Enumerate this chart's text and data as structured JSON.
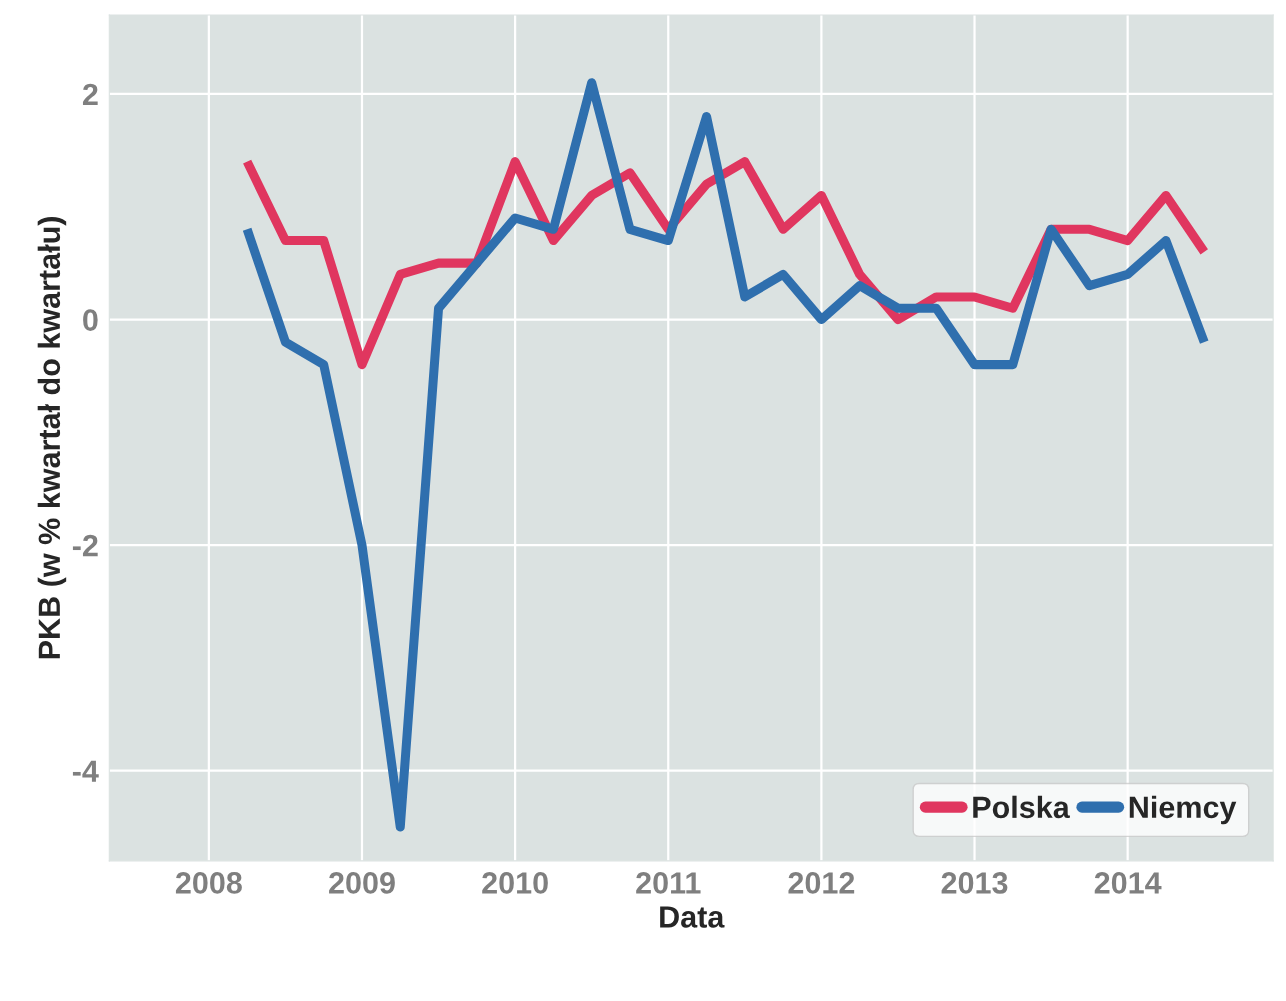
{
  "chart_data": {
    "type": "line",
    "xlabel": "Data",
    "ylabel": "PKB (w % kwartał do kwartału)",
    "x": [
      2008.25,
      2008.5,
      2008.75,
      2009,
      2009.25,
      2009.5,
      2009.75,
      2010,
      2010.25,
      2010.5,
      2010.75,
      2011,
      2011.25,
      2011.5,
      2011.75,
      2012,
      2012.25,
      2012.5,
      2012.75,
      2013,
      2013.25,
      2013.5,
      2013.75,
      2014,
      2014.25,
      2014.5
    ],
    "series": [
      {
        "name": "Polska",
        "color": "#e0365f",
        "values": [
          1.4,
          0.7,
          0.7,
          -0.4,
          0.4,
          0.5,
          0.5,
          1.4,
          0.7,
          1.1,
          1.3,
          0.8,
          1.2,
          1.4,
          0.8,
          1.1,
          0.4,
          0.0,
          0.2,
          0.2,
          0.1,
          0.8,
          0.8,
          0.7,
          1.1,
          0.6
        ]
      },
      {
        "name": "Niemcy",
        "color": "#2f6fae",
        "values": [
          0.8,
          -0.2,
          -0.4,
          -2.0,
          -4.5,
          0.1,
          0.5,
          0.9,
          0.8,
          2.1,
          0.8,
          0.7,
          1.8,
          0.2,
          0.4,
          0.0,
          0.3,
          0.1,
          0.1,
          -0.4,
          -0.4,
          0.8,
          0.3,
          0.4,
          0.7,
          -0.2
        ]
      }
    ],
    "xlim": [
      2007.35,
      2014.95
    ],
    "xticks": [
      2008,
      2009,
      2010,
      2011,
      2012,
      2013,
      2014
    ],
    "ylim": [
      -4.8,
      2.7
    ],
    "yticks": [
      -4,
      -2,
      0,
      2
    ],
    "grid": true,
    "legend": "bottom right",
    "marker": "none",
    "line_style": "solid"
  }
}
